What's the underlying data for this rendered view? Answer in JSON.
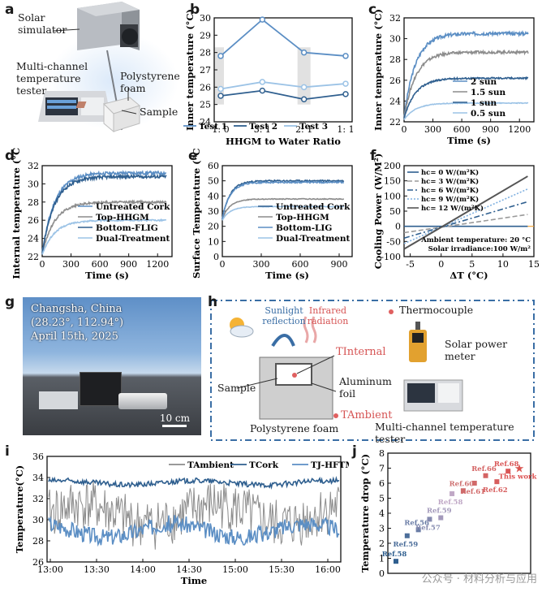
{
  "panel_labels": {
    "a": "a",
    "b": "b",
    "c": "c",
    "d": "d",
    "e": "e",
    "f": "f",
    "g": "g",
    "h": "h",
    "i": "i",
    "j": "j"
  },
  "panel_a": {
    "labels": [
      "Solar simulator",
      "Multi-channel temperature tester",
      "Polystyrene foam",
      "Sample"
    ]
  },
  "panel_g": {
    "location": "Changsha, China",
    "coords": "(28.23°, 112.94°)",
    "date": "April 15th, 2025",
    "scale": "10 cm"
  },
  "panel_h": {
    "sunlight": "Sunlight reflection",
    "infrared": "Infrared radiation",
    "thermocouple": "Thermocouple",
    "t_internal": "TInternal",
    "t_ambient": "TAmbient",
    "sample": "Sample",
    "aluminum": "Aluminum foil",
    "foam": "Polystyrene foam",
    "power_meter": "Solar power meter",
    "tester": "Multi-channel temperature tester"
  },
  "watermark": "公众号 · 材料分析与应用",
  "colors": {
    "dark": "#2f5f8f",
    "mid": "#5b8ec4",
    "light": "#9cc3e6",
    "gray": "#8c8c8c",
    "red": "#e06060"
  },
  "chart_data": [
    {
      "id": "b",
      "type": "line",
      "xlabel": "HHGM to Water Ratio",
      "ylabel": "Inner temperature (°C)",
      "categories": [
        "1: 0",
        "3: 1",
        "2: 1",
        "1: 1"
      ],
      "ylim": [
        24,
        30
      ],
      "yticks": [
        24,
        25,
        26,
        27,
        28,
        29,
        30
      ],
      "series": [
        {
          "name": "Test 1",
          "values": [
            27.8,
            29.9,
            28.0,
            27.8
          ]
        },
        {
          "name": "Test 2",
          "values": [
            25.5,
            25.8,
            25.3,
            25.6
          ]
        },
        {
          "name": "Test 3",
          "values": [
            25.9,
            26.3,
            26.0,
            26.2
          ]
        }
      ]
    },
    {
      "id": "c",
      "type": "line",
      "xlabel": "Time (s)",
      "ylabel": "Inner temperature (°C)",
      "xlim": [
        0,
        1350
      ],
      "xticks": [
        0,
        300,
        600,
        900,
        1200
      ],
      "ylim": [
        22,
        32
      ],
      "yticks": [
        22,
        24,
        26,
        28,
        30,
        32
      ],
      "series": [
        {
          "name": "2 sun",
          "start": 22.5,
          "end": 30.5
        },
        {
          "name": "1.5 sun",
          "start": 22.4,
          "end": 28.7
        },
        {
          "name": "1 sun",
          "start": 22.3,
          "end": 26.2
        },
        {
          "name": "0.5 sun",
          "start": 22.2,
          "end": 23.8
        }
      ]
    },
    {
      "id": "d",
      "type": "line",
      "xlabel": "Time (s)",
      "ylabel": "Internal temperature (°C)",
      "xlim": [
        0,
        1350
      ],
      "xticks": [
        0,
        300,
        600,
        900,
        1200
      ],
      "ylim": [
        22,
        32
      ],
      "yticks": [
        22,
        24,
        26,
        28,
        30,
        32
      ],
      "series": [
        {
          "name": "Untreated Cork",
          "start": 22.4,
          "end": 31.2
        },
        {
          "name": "Top-HHGM",
          "start": 22.3,
          "end": 28.0
        },
        {
          "name": "Bottom-FLIG",
          "start": 22.4,
          "end": 30.8
        },
        {
          "name": "Dual-Treatment",
          "start": 22.2,
          "end": 26.0
        }
      ]
    },
    {
      "id": "e",
      "type": "line",
      "xlabel": "Time (s)",
      "ylabel": "Surface Temperature (°C)",
      "xlim": [
        0,
        1000
      ],
      "xticks": [
        0,
        300,
        600,
        900
      ],
      "ylim": [
        0,
        60
      ],
      "yticks": [
        0,
        10,
        20,
        30,
        40,
        50,
        60
      ],
      "series": [
        {
          "name": "Untreated Cork",
          "start": 25,
          "end": 50
        },
        {
          "name": "Top-HHGM",
          "start": 25,
          "end": 38
        },
        {
          "name": "Bottom-LIG",
          "start": 25,
          "end": 49
        },
        {
          "name": "Dual-Treatment",
          "start": 24,
          "end": 33
        }
      ]
    },
    {
      "id": "f",
      "type": "line",
      "xlabel": "ΔT (°C)",
      "ylabel": "Cooling Power (W/M²)",
      "xlim": [
        -6,
        15
      ],
      "xticks": [
        -5,
        0,
        5,
        10,
        15
      ],
      "ylim": [
        -100,
        200
      ],
      "yticks": [
        -100,
        -50,
        0,
        50,
        100,
        150,
        200
      ],
      "annotations": [
        "Ambient temperature: 20 °C",
        "Solar irradiance:100 W/m²"
      ],
      "series": [
        {
          "name": "hc= 0 W/(m²K)",
          "slope": 0,
          "intercept": 0
        },
        {
          "name": "hc= 3 W/(m²K)",
          "slope": 3,
          "intercept": -3
        },
        {
          "name": "hc= 6 W/(m²K)",
          "slope": 6,
          "intercept": -3
        },
        {
          "name": "hc= 9 W/(m²K)",
          "slope": 9,
          "intercept": -3
        },
        {
          "name": "hc= 12 W/(m²K)",
          "slope": 12,
          "intercept": -3
        }
      ]
    },
    {
      "id": "i",
      "type": "line",
      "xlabel": "Time",
      "ylabel": "Temperature(°C)",
      "xticks": [
        "13:00",
        "13:30",
        "14:00",
        "14:30",
        "15:00",
        "15:30",
        "16:00"
      ],
      "ylim": [
        26,
        36
      ],
      "yticks": [
        26,
        28,
        30,
        32,
        34,
        36
      ],
      "series": [
        {
          "name": "TAmbient",
          "mean": 30.5
        },
        {
          "name": "TCork",
          "mean": 33.5
        },
        {
          "name": "TJ-HFTMM",
          "mean": 29.0
        }
      ]
    },
    {
      "id": "j",
      "type": "scatter",
      "ylabel": "Temperature drop (°C)",
      "ylim": [
        0,
        8
      ],
      "yticks": [
        0,
        1,
        2,
        3,
        4,
        5,
        6,
        7,
        8
      ],
      "points": [
        {
          "label": "Ref.58",
          "x": 1,
          "y": 0.8
        },
        {
          "label": "Ref.59",
          "x": 2,
          "y": 2.5
        },
        {
          "label": "Ref.56",
          "x": 3,
          "y": 2.9
        },
        {
          "label": "Ref.57",
          "x": 4,
          "y": 3.6
        },
        {
          "label": "Ref.59",
          "x": 5,
          "y": 3.7
        },
        {
          "label": "Ref.58",
          "x": 6,
          "y": 5.3
        },
        {
          "label": "Ref.60",
          "x": 7,
          "y": 5.5
        },
        {
          "label": "Ref.61",
          "x": 8,
          "y": 6.0
        },
        {
          "label": "Ref.66",
          "x": 9,
          "y": 6.5
        },
        {
          "label": "Ref.62",
          "x": 10,
          "y": 6.1
        },
        {
          "label": "Ref.68",
          "x": 11,
          "y": 6.8
        },
        {
          "label": "This work",
          "x": 12,
          "y": 7.0
        }
      ]
    }
  ]
}
